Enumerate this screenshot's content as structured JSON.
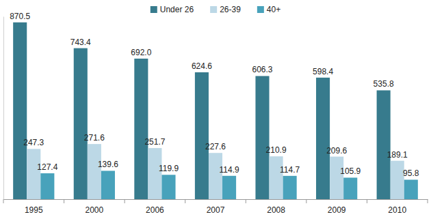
{
  "chart_data": {
    "type": "bar",
    "categories": [
      "1995",
      "2000",
      "2006",
      "2007",
      "2008",
      "2009",
      "2010"
    ],
    "series": [
      {
        "name": "Under 26",
        "color": "#377b8d",
        "values": [
          870.5,
          743.4,
          692.0,
          624.6,
          606.3,
          598.4,
          535.8
        ],
        "value_labels": [
          "870.5",
          "743.4",
          "692.0",
          "624.6",
          "606.3",
          "598.4",
          "535.8"
        ]
      },
      {
        "name": "26-39",
        "color": "#bcd8e6",
        "values": [
          247.3,
          271.6,
          251.7,
          227.6,
          210.9,
          209.6,
          189.1
        ],
        "value_labels": [
          "247.3",
          "271.6",
          "251.7",
          "227.6",
          "210.9",
          "209.6",
          "189.1"
        ]
      },
      {
        "name": "40+",
        "color": "#48a2bb",
        "values": [
          127.4,
          139.6,
          119.9,
          114.9,
          114.7,
          105.9,
          95.8
        ],
        "value_labels": [
          "127.4",
          "139.6",
          "119.9",
          "114.9",
          "114.7",
          "105.9",
          "95.8"
        ]
      }
    ],
    "ylim": [
      0,
      900
    ],
    "data_labels": true,
    "legend": "top",
    "tick_labels": "x",
    "grid": false
  }
}
